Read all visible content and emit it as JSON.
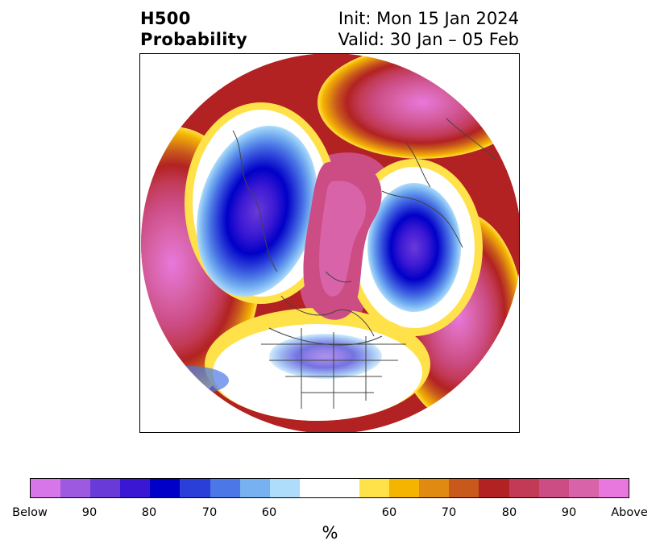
{
  "title": {
    "left_line1": "H500",
    "left_line2": "Probability",
    "right_line1": "Init: Mon 15 Jan 2024",
    "right_line2": "Valid: 30 Jan – 05 Feb"
  },
  "colorbar": {
    "unit": "%",
    "segments": [
      {
        "color": "#d776e8"
      },
      {
        "color": "#9d5ae0"
      },
      {
        "color": "#6a3ad9"
      },
      {
        "color": "#3a18d3"
      },
      {
        "color": "#0000c8"
      },
      {
        "color": "#2a3ed8"
      },
      {
        "color": "#4b78e6"
      },
      {
        "color": "#77b1f1"
      },
      {
        "color": "#aedcfb"
      },
      {
        "color": "#ffffff"
      },
      {
        "color": "#ffe24a"
      },
      {
        "color": "#f4b400"
      },
      {
        "color": "#e08a12"
      },
      {
        "color": "#c8581c"
      },
      {
        "color": "#b22222"
      },
      {
        "color": "#c23a55"
      },
      {
        "color": "#cc4c84"
      },
      {
        "color": "#d863a8"
      },
      {
        "color": "#e878dd"
      }
    ],
    "tick_labels": [
      "Below",
      "90",
      "80",
      "70",
      "60",
      "60",
      "70",
      "80",
      "90",
      "Above"
    ]
  },
  "map": {
    "projection": "polar-stereographic",
    "below_color": "#0000c8",
    "above_color": "#d863a8"
  }
}
